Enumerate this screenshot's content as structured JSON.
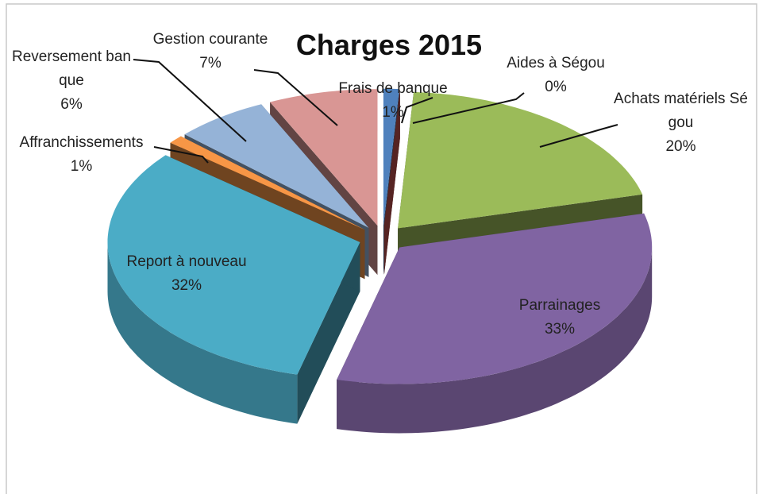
{
  "chart_data": {
    "type": "pie3d",
    "title": "Charges 2015",
    "categories": [
      "Frais de banque",
      "Aides à Ségou",
      "Achats matériels Ségou",
      "Parrainages",
      "Report à nouveau",
      "Affranchissements",
      "Reversement banque",
      "Gestion courante"
    ],
    "values": [
      1,
      0,
      20,
      33,
      32,
      1,
      6,
      7
    ],
    "value_labels": [
      "1%",
      "0%",
      "20%",
      "33%",
      "32%",
      "1%",
      "6%",
      "7%"
    ],
    "colors": [
      "#4f81bd",
      "#c0504d",
      "#9bbb59",
      "#8064a2",
      "#4bacc6",
      "#f79646",
      "#95b3d7",
      "#d99694"
    ]
  }
}
